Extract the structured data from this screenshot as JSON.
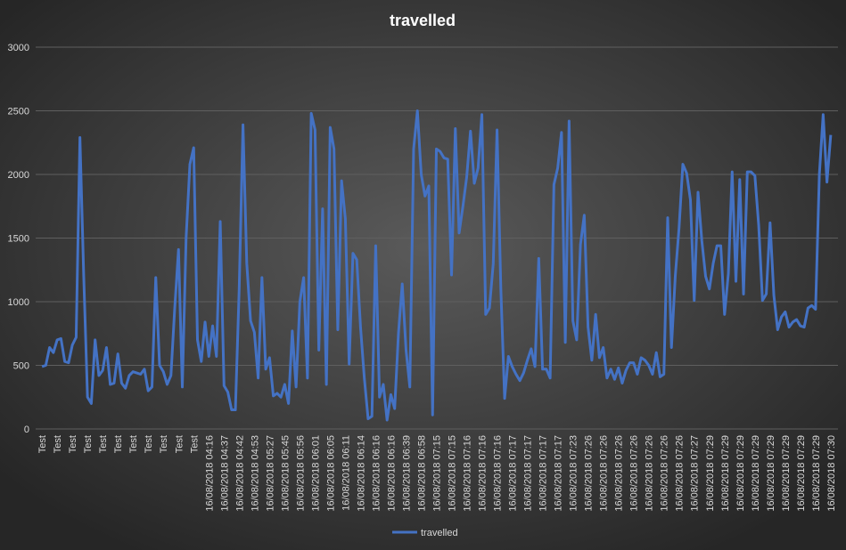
{
  "chart_data": {
    "type": "line",
    "title": "travelled",
    "categories": [
      "Test",
      null,
      null,
      null,
      "Test",
      null,
      null,
      null,
      "Test",
      null,
      null,
      null,
      "Test",
      null,
      null,
      null,
      "Test",
      null,
      null,
      null,
      "Test",
      null,
      null,
      null,
      "Test",
      null,
      null,
      null,
      "Test",
      null,
      null,
      null,
      "Test",
      null,
      null,
      null,
      "Test",
      null,
      null,
      null,
      "Test",
      null,
      null,
      null,
      "16/08/2018 04:16",
      null,
      null,
      null,
      "16/08/2018 04:37",
      null,
      null,
      null,
      "16/08/2018 04:42",
      null,
      null,
      null,
      "16/08/2018 04:53",
      null,
      null,
      null,
      "16/08/2018 05:27",
      null,
      null,
      null,
      "16/08/2018 05:45",
      null,
      null,
      null,
      "16/08/2018 05:56",
      null,
      null,
      null,
      "16/08/2018 06:01",
      null,
      null,
      null,
      "16/08/2018 06:05",
      null,
      null,
      null,
      "16/08/2018 06:11",
      null,
      null,
      null,
      "16/08/2018 06:14",
      null,
      null,
      null,
      "16/08/2018 06:16",
      null,
      null,
      null,
      "16/08/2018 06:16",
      null,
      null,
      null,
      "16/08/2018 06:39",
      null,
      null,
      null,
      "16/08/2018 06:58",
      null,
      null,
      null,
      "16/08/2018 07:15",
      null,
      null,
      null,
      "16/08/2018 07:15",
      null,
      null,
      null,
      "16/08/2018 07:16",
      null,
      null,
      null,
      "16/08/2018 07:16",
      null,
      null,
      null,
      "16/08/2018 07:16",
      null,
      null,
      null,
      "16/08/2018 07:17",
      null,
      null,
      null,
      "16/08/2018 07:17",
      null,
      null,
      null,
      "16/08/2018 07:17",
      null,
      null,
      null,
      "16/08/2018 07:17",
      null,
      null,
      null,
      "16/08/2018 07:23",
      null,
      null,
      null,
      "16/08/2018 07:26",
      null,
      null,
      null,
      "16/08/2018 07:26",
      null,
      null,
      null,
      "16/08/2018 07:26",
      null,
      null,
      null,
      "16/08/2018 07:26",
      null,
      null,
      null,
      "16/08/2018 07:26",
      null,
      null,
      null,
      "16/08/2018 07:26",
      null,
      null,
      null,
      "16/08/2018 07:26",
      null,
      null,
      null,
      "16/08/2018 07:27",
      null,
      null,
      null,
      "16/08/2018 07:29",
      null,
      null,
      null,
      "16/08/2018 07:29",
      null,
      null,
      null,
      "16/08/2018 07:29",
      null,
      null,
      null,
      "16/08/2018 07:29",
      null,
      null,
      null,
      "16/08/2018 07:29",
      null,
      null,
      null,
      "16/08/2018 07:29",
      null,
      null,
      null,
      "16/08/2018 07:29",
      null,
      null,
      null,
      "16/08/2018 07:29",
      null,
      null,
      null,
      "16/08/2018 07:30"
    ],
    "series": [
      {
        "name": "travelled",
        "color": "#4472c4",
        "values": [
          490,
          500,
          640,
          600,
          700,
          710,
          530,
          520,
          660,
          720,
          2290,
          1200,
          250,
          200,
          700,
          420,
          460,
          640,
          350,
          360,
          590,
          360,
          320,
          420,
          450,
          440,
          430,
          470,
          300,
          330,
          1190,
          500,
          450,
          350,
          420,
          950,
          1410,
          330,
          1500,
          2080,
          2210,
          700,
          530,
          840,
          570,
          810,
          570,
          1630,
          340,
          290,
          150,
          150,
          1100,
          2390,
          1300,
          850,
          760,
          400,
          1190,
          470,
          560,
          260,
          280,
          250,
          350,
          200,
          770,
          330,
          1000,
          1190,
          400,
          2480,
          2350,
          620,
          1730,
          350,
          2370,
          2200,
          780,
          1950,
          1650,
          510,
          1380,
          1330,
          800,
          400,
          80,
          100,
          1440,
          250,
          350,
          70,
          270,
          160,
          750,
          1140,
          620,
          330,
          2200,
          2500,
          2000,
          1830,
          1910,
          110,
          2200,
          2180,
          2130,
          2120,
          1210,
          2360,
          1540,
          1750,
          1980,
          2340,
          1930,
          2050,
          2470,
          900,
          950,
          1300,
          2350,
          1100,
          240,
          570,
          490,
          430,
          380,
          440,
          540,
          630,
          490,
          1340,
          470,
          470,
          400,
          1920,
          2050,
          2330,
          680,
          2420,
          850,
          700,
          1450,
          1680,
          800,
          540,
          900,
          560,
          640,
          400,
          470,
          390,
          480,
          360,
          460,
          520,
          520,
          430,
          560,
          540,
          500,
          430,
          600,
          410,
          430,
          1660,
          640,
          1200,
          1580,
          2080,
          2010,
          1800,
          1010,
          1860,
          1480,
          1200,
          1100,
          1300,
          1440,
          1440,
          900,
          1220,
          2020,
          1160,
          1960,
          1060,
          2020,
          2020,
          1990,
          1600,
          1010,
          1060,
          1620,
          1050,
          780,
          880,
          920,
          800,
          840,
          860,
          810,
          800,
          950,
          970,
          940,
          2000,
          2470,
          1940,
          2310
        ]
      }
    ],
    "ylim": [
      0,
      3000
    ],
    "yticks": [
      0,
      500,
      1000,
      1500,
      2000,
      2500,
      3000
    ],
    "grid": true,
    "legend": "bottom"
  }
}
